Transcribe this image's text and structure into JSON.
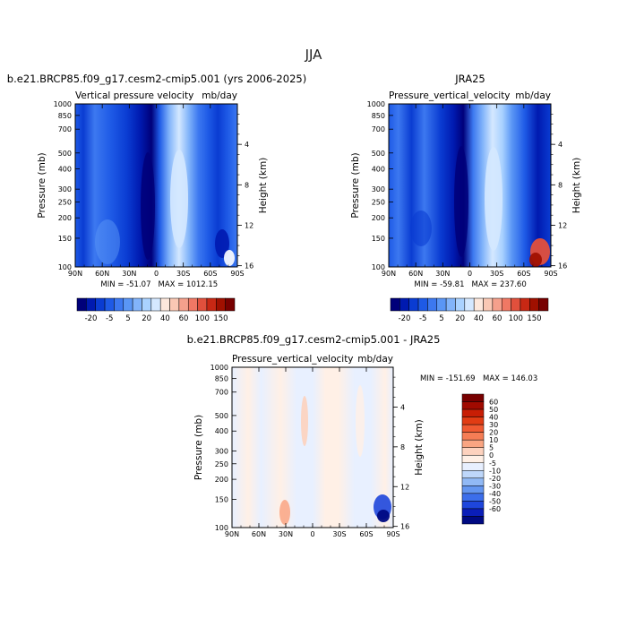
{
  "figure": {
    "title": "JJA",
    "x_ticks": [
      "90N",
      "60N",
      "30N",
      "0",
      "30S",
      "60S",
      "90S"
    ],
    "p_ticks": [
      "100",
      "150",
      "200",
      "250",
      "300",
      "400",
      "500",
      "700",
      "850",
      "1000"
    ],
    "h_ticks": [
      "16",
      "12",
      "8",
      "4"
    ],
    "ylabel_left": "Pressure (mb)",
    "ylabel_right": "Height (km)"
  },
  "chart_data": [
    {
      "type": "heatmap",
      "name": "panel-left",
      "case": "b.e21.BRCP85.f09_g17.cesm2-cmip5.001 (yrs 2006-2025)",
      "variable": "Vertical pressure velocity",
      "units": "mb/day",
      "min_label": "MIN = -51.07",
      "max_label": "MAX = 1012.15",
      "x_range": [
        90,
        -90
      ],
      "pressure_range": [
        1000,
        100
      ],
      "colorbar_labels": [
        "-20",
        "-5",
        "5",
        "20",
        "40",
        "60",
        "100",
        "150"
      ]
    },
    {
      "type": "heatmap",
      "name": "panel-right",
      "case": "JRA25",
      "variable": "Pressure_vertical_velocity",
      "units": "mb/day",
      "min_label": "MIN = -59.81",
      "max_label": "MAX = 237.60",
      "x_range": [
        90,
        -90
      ],
      "pressure_range": [
        1000,
        100
      ],
      "colorbar_labels": [
        "-20",
        "-5",
        "5",
        "20",
        "40",
        "60",
        "100",
        "150"
      ]
    },
    {
      "type": "heatmap",
      "name": "panel-diff",
      "case": "b.e21.BRCP85.f09_g17.cesm2-cmip5.001 - JRA25",
      "variable": "Pressure_vertical_velocity",
      "units": "mb/day",
      "min_label": "MIN = -151.69",
      "max_label": "MAX = 146.03",
      "x_range": [
        90,
        -90
      ],
      "pressure_range": [
        1000,
        100
      ],
      "colorbar_labels": [
        "60",
        "50",
        "40",
        "30",
        "20",
        "10",
        "5",
        "0",
        "-5",
        "-10",
        "-20",
        "-30",
        "-40",
        "-50",
        "-60"
      ]
    }
  ],
  "colors": {
    "seq": [
      "#00007a",
      "#001ab0",
      "#0a3cd2",
      "#1e5ae6",
      "#3c78f0",
      "#5a96f5",
      "#82b4fa",
      "#aad2ff",
      "#d4e8ff",
      "#fde8dc",
      "#fac8b4",
      "#f5a08c",
      "#f07864",
      "#e1503c",
      "#c82814",
      "#a01000",
      "#780000"
    ],
    "div": [
      "#780000",
      "#a00a00",
      "#c81e05",
      "#e13c14",
      "#f05a32",
      "#f57d55",
      "#faa582",
      "#fdd2be",
      "#fff0e6",
      "#e8f0ff",
      "#bed7fa",
      "#91b9f5",
      "#6496f0",
      "#3c6eeb",
      "#1e46dc",
      "#0a1eb9",
      "#000a82"
    ]
  }
}
